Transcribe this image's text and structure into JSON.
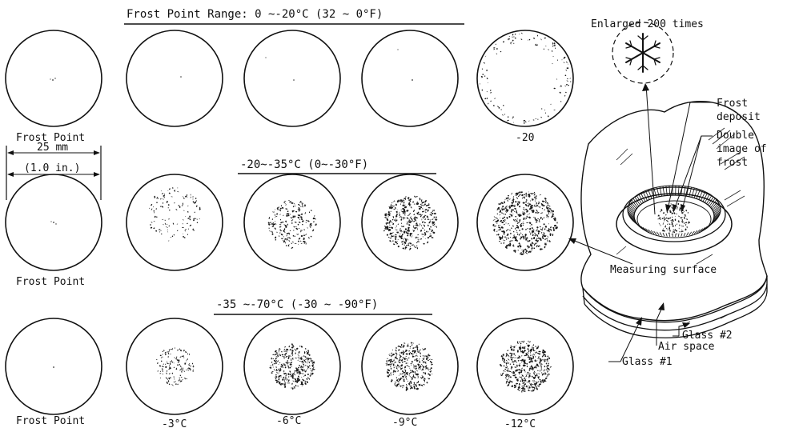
{
  "headings": {
    "row1": "Frost Point Range: 0 ~-20°C (32 ~ 0°F)",
    "row2": "-20~-35°C (0~-30°F)",
    "row3": "-35 ~-70°C (-30 ~ -90°F)"
  },
  "row_labels": {
    "row1": "Frost Point",
    "row2": "Frost Point",
    "row3": "Frost Point"
  },
  "row1_end_label": "-20",
  "scale": {
    "metric": "25 mm",
    "imperial": "(1.0 in.)"
  },
  "temperature_labels": [
    "-3°C",
    "-6°C",
    "-9°C",
    "-12°C"
  ],
  "callouts": {
    "enlarged": "Enlarged 200 times",
    "frost_deposit_1": "Frost",
    "frost_deposit_2": "deposit",
    "double_image_1": "Double",
    "double_image_2": "image of",
    "double_image_3": "frost",
    "measuring_surface": "Measuring surface",
    "glass2": "Glass #2",
    "air_space": "Air space",
    "glass1": "Glass #1"
  },
  "colors": {
    "ink": "#111111",
    "paper": "#ffffff"
  }
}
